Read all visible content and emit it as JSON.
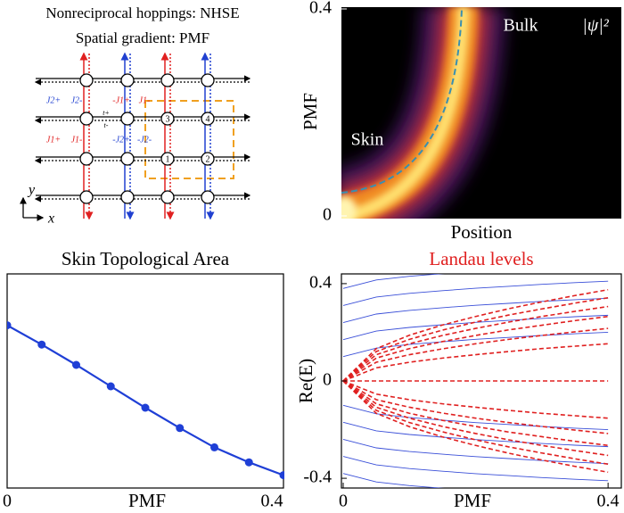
{
  "diagram": {
    "title_lines": [
      "Nonreciprocal hoppings: NHSE",
      "Spatial gradient: PMF"
    ],
    "hoppings_upper": [
      "J2+",
      "J2-",
      "-J1+",
      "J1-"
    ],
    "hoppings_lower": [
      "J1+",
      "J1-",
      "-J2+",
      "-J2-"
    ],
    "inner_hoppings": [
      "t+",
      "t-"
    ],
    "nodes": [
      "3",
      "4",
      "1",
      "2"
    ],
    "axes": [
      "y",
      "x"
    ]
  },
  "chart_data": [
    {
      "type": "heatmap",
      "ylabel": "PMF",
      "xlabel": "Position",
      "ylim": [
        0,
        0.4
      ],
      "yticks": [
        0,
        0.4
      ],
      "annotations": [
        "Skin",
        "Bulk",
        "|ψ|²"
      ]
    },
    {
      "type": "line",
      "title": "Skin Topological Area",
      "xlabel": "PMF",
      "x": [
        0,
        0.05,
        0.1,
        0.15,
        0.2,
        0.25,
        0.3,
        0.35,
        0.4
      ],
      "values": [
        0.76,
        0.67,
        0.575,
        0.475,
        0.375,
        0.28,
        0.19,
        0.12,
        0.06
      ],
      "color": "#1f3fd6",
      "markers": true,
      "xlim": [
        0,
        0.4
      ],
      "ylim": [
        0,
        1
      ],
      "xticks": [
        0,
        0.4
      ]
    },
    {
      "type": "line",
      "title": "Landau levels",
      "title_color": "#e02020",
      "ylabel": "Re(E)",
      "xlabel": "PMF",
      "x": [
        0,
        0.05,
        0.1,
        0.15,
        0.2,
        0.25,
        0.3,
        0.35,
        0.4
      ],
      "xlim": [
        0,
        0.42
      ],
      "ylim": [
        -0.44,
        0.44
      ],
      "xticks": [
        0,
        0.4
      ],
      "yticks": [
        -0.4,
        0,
        0.4
      ],
      "series": [
        {
          "color": "#3a4fd8",
          "dashed": false,
          "values": [
            0.1,
            0.135,
            0.15,
            0.161,
            0.171,
            0.179,
            0.187,
            0.194,
            0.2
          ]
        },
        {
          "color": "#3a4fd8",
          "dashed": false,
          "values": [
            0.17,
            0.205,
            0.22,
            0.231,
            0.241,
            0.249,
            0.257,
            0.264,
            0.27
          ]
        },
        {
          "color": "#3a4fd8",
          "dashed": false,
          "values": [
            0.24,
            0.275,
            0.29,
            0.301,
            0.311,
            0.319,
            0.327,
            0.334,
            0.34
          ]
        },
        {
          "color": "#3a4fd8",
          "dashed": false,
          "values": [
            0.31,
            0.345,
            0.36,
            0.371,
            0.381,
            0.389,
            0.397,
            0.404,
            0.41
          ]
        },
        {
          "color": "#3a4fd8",
          "dashed": false,
          "values": [
            0.38,
            0.415,
            0.43,
            0.441,
            0.451,
            0.459,
            0.467,
            0.474,
            0.48
          ]
        },
        {
          "color": "#3a4fd8",
          "dashed": false,
          "values": [
            -0.1,
            -0.135,
            -0.15,
            -0.161,
            -0.171,
            -0.179,
            -0.187,
            -0.194,
            -0.2
          ]
        },
        {
          "color": "#3a4fd8",
          "dashed": false,
          "values": [
            -0.17,
            -0.205,
            -0.22,
            -0.231,
            -0.241,
            -0.249,
            -0.257,
            -0.264,
            -0.27
          ]
        },
        {
          "color": "#3a4fd8",
          "dashed": false,
          "values": [
            -0.24,
            -0.275,
            -0.29,
            -0.301,
            -0.311,
            -0.319,
            -0.327,
            -0.334,
            -0.34
          ]
        },
        {
          "color": "#3a4fd8",
          "dashed": false,
          "values": [
            -0.31,
            -0.345,
            -0.36,
            -0.371,
            -0.381,
            -0.389,
            -0.397,
            -0.404,
            -0.41
          ]
        },
        {
          "color": "#3a4fd8",
          "dashed": false,
          "values": [
            -0.38,
            -0.415,
            -0.43,
            -0.441,
            -0.451,
            -0.459,
            -0.467,
            -0.474,
            -0.48
          ]
        },
        {
          "color": "#e02020",
          "dashed": true,
          "values": [
            0,
            0,
            0,
            0,
            0,
            0,
            0,
            0,
            0
          ]
        },
        {
          "color": "#e02020",
          "dashed": true,
          "values": [
            0,
            0.054,
            0.077,
            0.094,
            0.108,
            0.121,
            0.133,
            0.143,
            0.153
          ]
        },
        {
          "color": "#e02020",
          "dashed": true,
          "values": [
            0,
            0.077,
            0.108,
            0.132,
            0.153,
            0.171,
            0.187,
            0.202,
            0.216
          ]
        },
        {
          "color": "#e02020",
          "dashed": true,
          "values": [
            0,
            0.094,
            0.133,
            0.162,
            0.187,
            0.21,
            0.229,
            0.248,
            0.265
          ]
        },
        {
          "color": "#e02020",
          "dashed": true,
          "values": [
            0,
            0.108,
            0.153,
            0.187,
            0.216,
            0.242,
            0.265,
            0.286,
            0.306
          ]
        },
        {
          "color": "#e02020",
          "dashed": true,
          "values": [
            0,
            0.121,
            0.171,
            0.209,
            0.242,
            0.271,
            0.296,
            0.32,
            0.342
          ]
        },
        {
          "color": "#e02020",
          "dashed": true,
          "values": [
            0,
            0.133,
            0.188,
            0.23,
            0.265,
            0.297,
            0.325,
            0.351,
            0.375
          ]
        },
        {
          "color": "#e02020",
          "dashed": true,
          "values": [
            0,
            -0.054,
            -0.077,
            -0.094,
            -0.108,
            -0.121,
            -0.133,
            -0.143,
            -0.153
          ]
        },
        {
          "color": "#e02020",
          "dashed": true,
          "values": [
            0,
            -0.077,
            -0.108,
            -0.132,
            -0.153,
            -0.171,
            -0.187,
            -0.202,
            -0.216
          ]
        },
        {
          "color": "#e02020",
          "dashed": true,
          "values": [
            0,
            -0.094,
            -0.133,
            -0.162,
            -0.187,
            -0.21,
            -0.229,
            -0.248,
            -0.265
          ]
        },
        {
          "color": "#e02020",
          "dashed": true,
          "values": [
            0,
            -0.108,
            -0.153,
            -0.187,
            -0.216,
            -0.242,
            -0.265,
            -0.286,
            -0.306
          ]
        },
        {
          "color": "#e02020",
          "dashed": true,
          "values": [
            0,
            -0.121,
            -0.171,
            -0.209,
            -0.242,
            -0.271,
            -0.296,
            -0.32,
            -0.342
          ]
        },
        {
          "color": "#e02020",
          "dashed": true,
          "values": [
            0,
            -0.133,
            -0.188,
            -0.23,
            -0.265,
            -0.297,
            -0.325,
            -0.351,
            -0.375
          ]
        }
      ]
    }
  ]
}
